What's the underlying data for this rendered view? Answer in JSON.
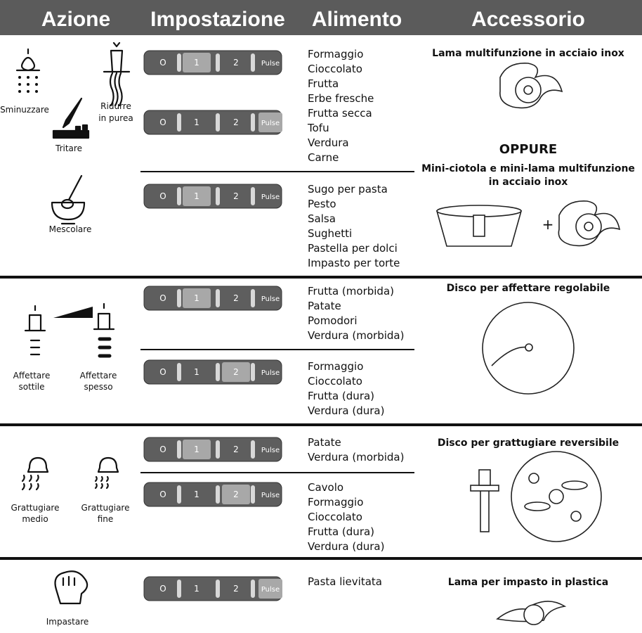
{
  "header": {
    "columns": [
      "Azione",
      "Impostazione",
      "Alimento",
      "Accessorio"
    ]
  },
  "settings_labels": [
    "O",
    "1",
    "2",
    "Pulse"
  ],
  "sections": [
    {
      "actions": [
        {
          "lines": [
            "Sminuzzare"
          ]
        },
        {
          "lines": [
            "Ridurre",
            "in purea"
          ]
        },
        {
          "lines": [
            "Tritare"
          ]
        },
        {
          "lines": [
            "Mescolare"
          ]
        }
      ],
      "groups": [
        {
          "settings": [
            1,
            3
          ],
          "foods": [
            "Formaggio",
            "Cioccolato",
            "Frutta",
            "Erbe fresche",
            "Frutta secca",
            "Tofu",
            "Verdura",
            "Carne"
          ]
        },
        {
          "settings": [
            1
          ],
          "foods": [
            "Sugo per pasta",
            "Pesto",
            "Salsa",
            "Sughetti",
            "Pastella per dolci",
            "Impasto per torte"
          ]
        }
      ],
      "accessory": {
        "title": "Lama multifunzione in acciaio inox",
        "alternative": "OPPURE",
        "title2": [
          "Mini-ciotola e mini-lama multifunzione",
          "in acciaio inox"
        ],
        "plus": "+"
      }
    },
    {
      "actions": [
        {
          "lines": [
            "Affettare",
            "sottile"
          ]
        },
        {
          "lines": [
            "Affettare",
            "spesso"
          ]
        }
      ],
      "groups": [
        {
          "settings": [
            1
          ],
          "foods": [
            "Frutta (morbida)",
            "Patate",
            "Pomodori",
            "Verdura (morbida)"
          ]
        },
        {
          "settings": [
            2
          ],
          "foods": [
            "Formaggio",
            "Cioccolato",
            "Frutta (dura)",
            "Verdura (dura)"
          ]
        }
      ],
      "accessory": {
        "title": "Disco per affettare regolabile"
      }
    },
    {
      "actions": [
        {
          "lines": [
            "Grattugiare",
            "medio"
          ]
        },
        {
          "lines": [
            "Grattugiare",
            "fine"
          ]
        }
      ],
      "groups": [
        {
          "settings": [
            1
          ],
          "foods": [
            "Patate",
            "Verdura (morbida)"
          ]
        },
        {
          "settings": [
            2
          ],
          "foods": [
            "Cavolo",
            "Formaggio",
            "Cioccolato",
            "Frutta (dura)",
            "Verdura (dura)"
          ]
        }
      ],
      "accessory": {
        "title": "Disco per grattugiare reversibile"
      }
    },
    {
      "actions": [
        {
          "lines": [
            "Impastare"
          ]
        }
      ],
      "groups": [
        {
          "settings": [
            3
          ],
          "foods": [
            "Pasta lievitata"
          ]
        }
      ],
      "accessory": {
        "title": "Lama per impasto in plastica"
      }
    }
  ]
}
